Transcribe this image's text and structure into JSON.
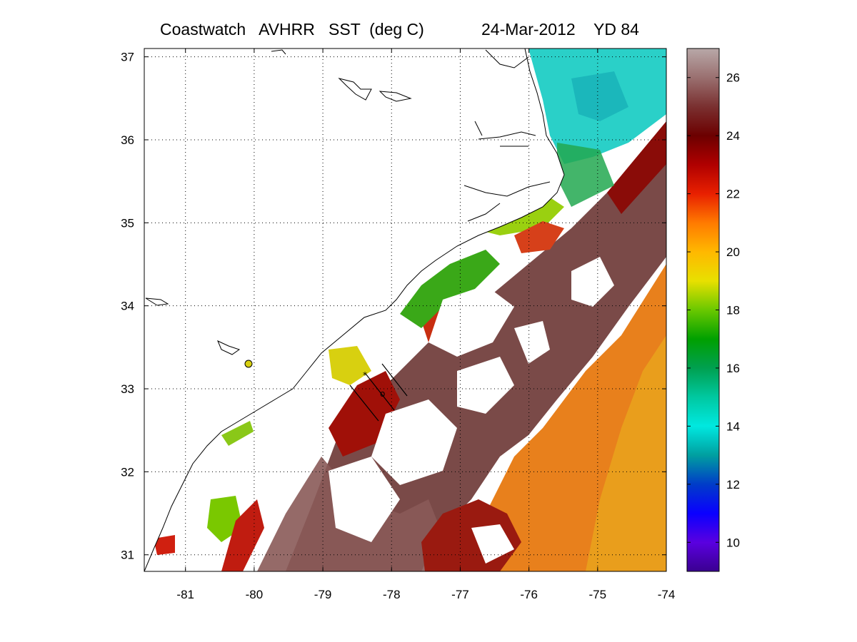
{
  "title": {
    "product": "Coastwatch   AVHRR   SST  (deg C)",
    "date": "24-Mar-2012",
    "yearday": "YD 84"
  },
  "map": {
    "lon_range": [
      -81.6,
      -74.0
    ],
    "lat_range": [
      30.8,
      37.1
    ],
    "lon_ticks": [
      "-81",
      "-80",
      "-79",
      "-78",
      "-77",
      "-76",
      "-75",
      "-74"
    ],
    "lat_ticks": [
      "31",
      "32",
      "33",
      "34",
      "35",
      "36",
      "37"
    ],
    "gridlines": "dotted",
    "land_color": "#ffffff",
    "cloud_mask_color": "#ffffff"
  },
  "colorbar": {
    "min": 9,
    "max": 27,
    "tick_labels": [
      "10",
      "12",
      "14",
      "16",
      "18",
      "20",
      "22",
      "24",
      "26"
    ],
    "colormap": [
      "#3a0090",
      "#5a00e0",
      "#0a00ff",
      "#003cc8",
      "#009fa0",
      "#00e8e0",
      "#00c8a0",
      "#00a050",
      "#00a000",
      "#6ac800",
      "#e8e000",
      "#ffb800",
      "#ff7a00",
      "#e82000",
      "#b00000",
      "#6c0000",
      "#7a3030",
      "#9a7070",
      "#b8a8a8"
    ]
  }
}
